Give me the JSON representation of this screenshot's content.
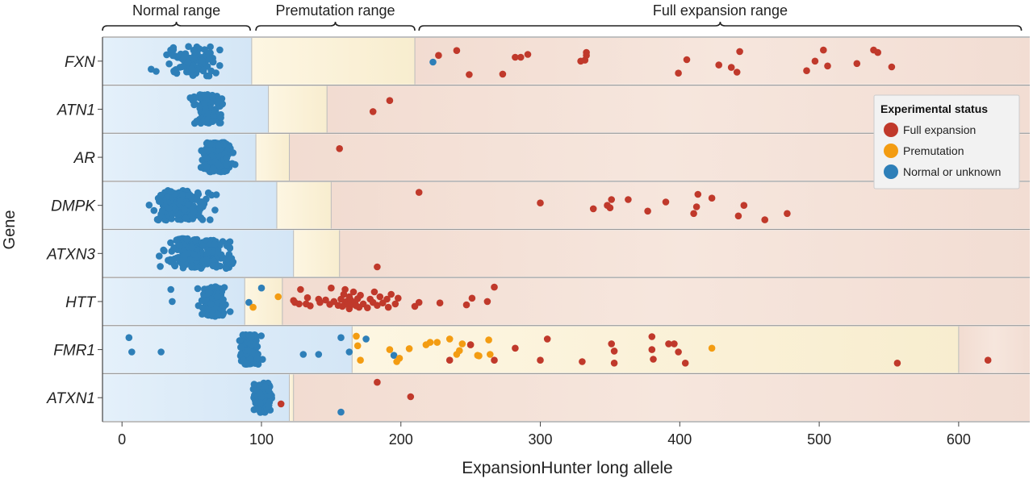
{
  "chart_data": {
    "type": "scatter",
    "xlabel": "ExpansionHunter long allele",
    "ylabel": "Gene",
    "xlim": [
      -14,
      651
    ],
    "x_ticks": [
      0,
      100,
      200,
      300,
      400,
      500,
      600
    ],
    "categories": [
      "FXN",
      "ATN1",
      "AR",
      "DMPK",
      "ATXN3",
      "HTT",
      "FMR1",
      "ATXN1"
    ],
    "range_brackets": [
      {
        "label": "Normal range",
        "start": -14,
        "end": 92
      },
      {
        "label": "Premutation range",
        "start": 96,
        "end": 210
      },
      {
        "label": "Full expansion range",
        "start": 213,
        "end": 645
      }
    ],
    "legend": {
      "title": "Experimental status",
      "position": "top-right",
      "entries": [
        {
          "label": "Full expansion",
          "color": "#c0392b"
        },
        {
          "label": "Premutation",
          "color": "#f39c12"
        },
        {
          "label": "Normal or unknown",
          "color": "#2e7fb8"
        }
      ]
    },
    "colors": {
      "full": "#c0392b",
      "pre": "#f39c12",
      "normal": "#2e7fb8",
      "normal_band": "#dcebf8",
      "pre_band": "#fbf1d7",
      "full_band": "#f4dfd5"
    },
    "gene_ranges": [
      {
        "gene": "FXN",
        "normal_max": 93,
        "pre_max": 210
      },
      {
        "gene": "ATN1",
        "normal_max": 105,
        "pre_max": 147
      },
      {
        "gene": "AR",
        "normal_max": 96,
        "pre_max": 120
      },
      {
        "gene": "DMPK",
        "normal_max": 111,
        "pre_max": 150
      },
      {
        "gene": "ATXN3",
        "normal_max": 123,
        "pre_max": 156
      },
      {
        "gene": "HTT",
        "normal_max": 88,
        "pre_max": 115
      },
      {
        "gene": "FMR1",
        "normal_max": 165,
        "pre_max": 600
      },
      {
        "gene": "ATXN1",
        "normal_max": 120,
        "pre_max": 123
      }
    ],
    "series": [
      {
        "name": "Full expansion",
        "points": [
          {
            "gene": "FXN",
            "x": 227,
            "j": -0.12
          },
          {
            "gene": "FXN",
            "x": 240,
            "j": -0.22
          },
          {
            "gene": "FXN",
            "x": 249,
            "j": 0.28
          },
          {
            "gene": "FXN",
            "x": 273,
            "j": 0.27
          },
          {
            "gene": "FXN",
            "x": 282,
            "j": -0.08
          },
          {
            "gene": "FXN",
            "x": 286,
            "j": -0.08
          },
          {
            "gene": "FXN",
            "x": 291,
            "j": -0.14
          },
          {
            "gene": "FXN",
            "x": 329,
            "j": 0.0
          },
          {
            "gene": "FXN",
            "x": 332,
            "j": -0.02
          },
          {
            "gene": "FXN",
            "x": 333,
            "j": -0.12
          },
          {
            "gene": "FXN",
            "x": 333,
            "j": -0.18
          },
          {
            "gene": "FXN",
            "x": 399,
            "j": 0.25
          },
          {
            "gene": "FXN",
            "x": 405,
            "j": -0.03
          },
          {
            "gene": "FXN",
            "x": 428,
            "j": 0.08
          },
          {
            "gene": "FXN",
            "x": 437,
            "j": 0.13
          },
          {
            "gene": "FXN",
            "x": 441,
            "j": 0.23
          },
          {
            "gene": "FXN",
            "x": 443,
            "j": -0.2
          },
          {
            "gene": "FXN",
            "x": 491,
            "j": 0.2
          },
          {
            "gene": "FXN",
            "x": 497,
            "j": 0.0
          },
          {
            "gene": "FXN",
            "x": 503,
            "j": -0.23
          },
          {
            "gene": "FXN",
            "x": 506,
            "j": 0.1
          },
          {
            "gene": "FXN",
            "x": 527,
            "j": 0.05
          },
          {
            "gene": "FXN",
            "x": 539,
            "j": -0.23
          },
          {
            "gene": "FXN",
            "x": 542,
            "j": -0.18
          },
          {
            "gene": "FXN",
            "x": 552,
            "j": 0.12
          },
          {
            "gene": "ATN1",
            "x": 180,
            "j": 0.05
          },
          {
            "gene": "ATN1",
            "x": 192,
            "j": -0.18
          },
          {
            "gene": "AR",
            "x": 156,
            "j": -0.18
          },
          {
            "gene": "DMPK",
            "x": 213,
            "j": -0.27
          },
          {
            "gene": "DMPK",
            "x": 300,
            "j": -0.05
          },
          {
            "gene": "DMPK",
            "x": 338,
            "j": 0.07
          },
          {
            "gene": "DMPK",
            "x": 348,
            "j": 0.0
          },
          {
            "gene": "DMPK",
            "x": 350,
            "j": 0.05
          },
          {
            "gene": "DMPK",
            "x": 351,
            "j": -0.12
          },
          {
            "gene": "DMPK",
            "x": 363,
            "j": -0.12
          },
          {
            "gene": "DMPK",
            "x": 377,
            "j": 0.12
          },
          {
            "gene": "DMPK",
            "x": 390,
            "j": -0.07
          },
          {
            "gene": "DMPK",
            "x": 410,
            "j": 0.17
          },
          {
            "gene": "DMPK",
            "x": 412,
            "j": 0.03
          },
          {
            "gene": "DMPK",
            "x": 413,
            "j": -0.23
          },
          {
            "gene": "DMPK",
            "x": 423,
            "j": -0.15
          },
          {
            "gene": "DMPK",
            "x": 442,
            "j": 0.22
          },
          {
            "gene": "DMPK",
            "x": 446,
            "j": 0.0
          },
          {
            "gene": "DMPK",
            "x": 461,
            "j": 0.3
          },
          {
            "gene": "DMPK",
            "x": 477,
            "j": 0.17
          },
          {
            "gene": "ATXN3",
            "x": 183,
            "j": 0.28
          },
          {
            "gene": "HTT",
            "x": 123,
            "j": -0.02
          },
          {
            "gene": "HTT",
            "x": 124,
            "j": 0.02
          },
          {
            "gene": "HTT",
            "x": 127,
            "j": 0.05
          },
          {
            "gene": "HTT",
            "x": 128,
            "j": -0.25
          },
          {
            "gene": "HTT",
            "x": 132,
            "j": 0.05
          },
          {
            "gene": "HTT",
            "x": 133,
            "j": -0.08
          },
          {
            "gene": "HTT",
            "x": 135,
            "j": 0.09
          },
          {
            "gene": "HTT",
            "x": 141,
            "j": -0.05
          },
          {
            "gene": "HTT",
            "x": 142,
            "j": 0.02
          },
          {
            "gene": "HTT",
            "x": 146,
            "j": -0.03
          },
          {
            "gene": "HTT",
            "x": 149,
            "j": 0.06
          },
          {
            "gene": "HTT",
            "x": 150,
            "j": -0.28
          },
          {
            "gene": "HTT",
            "x": 152,
            "j": 0.0
          },
          {
            "gene": "HTT",
            "x": 155,
            "j": 0.08
          },
          {
            "gene": "HTT",
            "x": 157,
            "j": -0.05
          },
          {
            "gene": "HTT",
            "x": 158,
            "j": 0.1
          },
          {
            "gene": "HTT",
            "x": 159,
            "j": -0.15
          },
          {
            "gene": "HTT",
            "x": 160,
            "j": 0.05
          },
          {
            "gene": "HTT",
            "x": 160,
            "j": -0.25
          },
          {
            "gene": "HTT",
            "x": 161,
            "j": 0.0
          },
          {
            "gene": "HTT",
            "x": 162,
            "j": 0.07
          },
          {
            "gene": "HTT",
            "x": 163,
            "j": -0.1
          },
          {
            "gene": "HTT",
            "x": 163,
            "j": 0.15
          },
          {
            "gene": "HTT",
            "x": 164,
            "j": -0.03
          },
          {
            "gene": "HTT",
            "x": 165,
            "j": 0.06
          },
          {
            "gene": "HTT",
            "x": 166,
            "j": -0.2
          },
          {
            "gene": "HTT",
            "x": 167,
            "j": 0.02
          },
          {
            "gene": "HTT",
            "x": 168,
            "j": 0.09
          },
          {
            "gene": "HTT",
            "x": 169,
            "j": -0.06
          },
          {
            "gene": "HTT",
            "x": 170,
            "j": 0.12
          },
          {
            "gene": "HTT",
            "x": 171,
            "j": -0.13
          },
          {
            "gene": "HTT",
            "x": 173,
            "j": 0.05
          },
          {
            "gene": "HTT",
            "x": 176,
            "j": 0.13
          },
          {
            "gene": "HTT",
            "x": 178,
            "j": -0.05
          },
          {
            "gene": "HTT",
            "x": 180,
            "j": 0.02
          },
          {
            "gene": "HTT",
            "x": 181,
            "j": -0.2
          },
          {
            "gene": "HTT",
            "x": 183,
            "j": 0.08
          },
          {
            "gene": "HTT",
            "x": 185,
            "j": -0.1
          },
          {
            "gene": "HTT",
            "x": 187,
            "j": 0.03
          },
          {
            "gene": "HTT",
            "x": 190,
            "j": -0.05
          },
          {
            "gene": "HTT",
            "x": 191,
            "j": 0.12
          },
          {
            "gene": "HTT",
            "x": 193,
            "j": -0.15
          },
          {
            "gene": "HTT",
            "x": 196,
            "j": 0.05
          },
          {
            "gene": "HTT",
            "x": 198,
            "j": -0.07
          },
          {
            "gene": "HTT",
            "x": 210,
            "j": 0.1
          },
          {
            "gene": "HTT",
            "x": 213,
            "j": 0.02
          },
          {
            "gene": "HTT",
            "x": 228,
            "j": 0.03
          },
          {
            "gene": "HTT",
            "x": 247,
            "j": 0.07
          },
          {
            "gene": "HTT",
            "x": 251,
            "j": -0.07
          },
          {
            "gene": "HTT",
            "x": 262,
            "j": 0.0
          },
          {
            "gene": "HTT",
            "x": 267,
            "j": -0.3
          },
          {
            "gene": "FMR1",
            "x": 235,
            "j": 0.22
          },
          {
            "gene": "FMR1",
            "x": 250,
            "j": -0.1
          },
          {
            "gene": "FMR1",
            "x": 267,
            "j": 0.22
          },
          {
            "gene": "FMR1",
            "x": 282,
            "j": -0.03
          },
          {
            "gene": "FMR1",
            "x": 300,
            "j": 0.22
          },
          {
            "gene": "FMR1",
            "x": 305,
            "j": -0.22
          },
          {
            "gene": "FMR1",
            "x": 330,
            "j": 0.25
          },
          {
            "gene": "FMR1",
            "x": 351,
            "j": -0.12
          },
          {
            "gene": "FMR1",
            "x": 353,
            "j": 0.03
          },
          {
            "gene": "FMR1",
            "x": 353,
            "j": 0.28
          },
          {
            "gene": "FMR1",
            "x": 380,
            "j": -0.27
          },
          {
            "gene": "FMR1",
            "x": 380,
            "j": 0.0
          },
          {
            "gene": "FMR1",
            "x": 381,
            "j": 0.2
          },
          {
            "gene": "FMR1",
            "x": 392,
            "j": -0.12
          },
          {
            "gene": "FMR1",
            "x": 396,
            "j": -0.12
          },
          {
            "gene": "FMR1",
            "x": 399,
            "j": 0.05
          },
          {
            "gene": "FMR1",
            "x": 404,
            "j": 0.28
          },
          {
            "gene": "FMR1",
            "x": 556,
            "j": 0.28
          },
          {
            "gene": "FMR1",
            "x": 621,
            "j": 0.22
          },
          {
            "gene": "ATXN1",
            "x": 114,
            "j": 0.13
          },
          {
            "gene": "ATXN1",
            "x": 183,
            "j": -0.32
          },
          {
            "gene": "ATXN1",
            "x": 207,
            "j": -0.02
          }
        ]
      },
      {
        "name": "Premutation",
        "points": [
          {
            "gene": "HTT",
            "x": 94,
            "j": 0.12
          },
          {
            "gene": "HTT",
            "x": 112,
            "j": -0.1
          },
          {
            "gene": "FMR1",
            "x": 168,
            "j": -0.28
          },
          {
            "gene": "FMR1",
            "x": 169,
            "j": -0.08
          },
          {
            "gene": "FMR1",
            "x": 171,
            "j": 0.22
          },
          {
            "gene": "FMR1",
            "x": 192,
            "j": 0.0
          },
          {
            "gene": "FMR1",
            "x": 197,
            "j": 0.25
          },
          {
            "gene": "FMR1",
            "x": 199,
            "j": 0.18
          },
          {
            "gene": "FMR1",
            "x": 206,
            "j": -0.02
          },
          {
            "gene": "FMR1",
            "x": 218,
            "j": -0.1
          },
          {
            "gene": "FMR1",
            "x": 221,
            "j": -0.15
          },
          {
            "gene": "FMR1",
            "x": 226,
            "j": -0.15
          },
          {
            "gene": "FMR1",
            "x": 235,
            "j": -0.22
          },
          {
            "gene": "FMR1",
            "x": 240,
            "j": 0.1
          },
          {
            "gene": "FMR1",
            "x": 242,
            "j": 0.02
          },
          {
            "gene": "FMR1",
            "x": 244,
            "j": -0.12
          },
          {
            "gene": "FMR1",
            "x": 250,
            "j": -0.1
          },
          {
            "gene": "FMR1",
            "x": 255,
            "j": 0.12
          },
          {
            "gene": "FMR1",
            "x": 256,
            "j": 0.13
          },
          {
            "gene": "FMR1",
            "x": 263,
            "j": -0.2
          },
          {
            "gene": "FMR1",
            "x": 264,
            "j": 0.1
          },
          {
            "gene": "FMR1",
            "x": 423,
            "j": -0.03
          }
        ]
      },
      {
        "name": "Normal or unknown",
        "points": [
          {
            "gene": "FXN",
            "x": 223,
            "j": 0.02
          },
          {
            "gene": "HTT",
            "x": 35,
            "j": -0.25
          },
          {
            "gene": "HTT",
            "x": 36,
            "j": 0.0
          },
          {
            "gene": "HTT",
            "x": 100,
            "j": -0.28
          },
          {
            "gene": "HTT",
            "x": 91,
            "j": 0.02
          },
          {
            "gene": "FMR1",
            "x": 5,
            "j": -0.25
          },
          {
            "gene": "FMR1",
            "x": 7,
            "j": 0.05
          },
          {
            "gene": "FMR1",
            "x": 28,
            "j": 0.05
          },
          {
            "gene": "FMR1",
            "x": 130,
            "j": 0.1
          },
          {
            "gene": "FMR1",
            "x": 141,
            "j": 0.1
          },
          {
            "gene": "FMR1",
            "x": 157,
            "j": -0.25
          },
          {
            "gene": "FMR1",
            "x": 163,
            "j": 0.05
          },
          {
            "gene": "FMR1",
            "x": 175,
            "j": -0.22
          },
          {
            "gene": "FMR1",
            "x": 195,
            "j": 0.12
          },
          {
            "gene": "ATXN1",
            "x": 157,
            "j": 0.3
          }
        ]
      }
    ],
    "normal_clusters": [
      {
        "gene": "FXN",
        "n": 90,
        "center": 50,
        "spread": 22,
        "min": 18,
        "max": 74
      },
      {
        "gene": "ATN1",
        "n": 120,
        "center": 62,
        "spread": 10,
        "min": 36,
        "max": 88
      },
      {
        "gene": "AR",
        "n": 260,
        "center": 68,
        "spread": 9,
        "min": 40,
        "max": 86
      },
      {
        "gene": "DMPK",
        "n": 170,
        "center": 42,
        "spread": 20,
        "min": 13,
        "max": 98
      },
      {
        "gene": "ATXN3",
        "n": 220,
        "center": 55,
        "spread": 22,
        "min": 5,
        "max": 110
      },
      {
        "gene": "HTT",
        "n": 190,
        "center": 66,
        "spread": 9,
        "min": 48,
        "max": 88
      },
      {
        "gene": "FMR1",
        "n": 210,
        "center": 92,
        "spread": 6,
        "min": 50,
        "max": 116
      },
      {
        "gene": "ATXN1",
        "n": 150,
        "center": 101,
        "spread": 6,
        "min": 82,
        "max": 118
      }
    ]
  }
}
